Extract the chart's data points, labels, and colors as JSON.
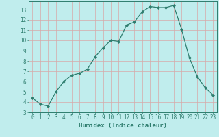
{
  "x": [
    0,
    1,
    2,
    3,
    4,
    5,
    6,
    7,
    8,
    9,
    10,
    11,
    12,
    13,
    14,
    15,
    16,
    17,
    18,
    19,
    20,
    21,
    22,
    23
  ],
  "y": [
    4.4,
    3.8,
    3.6,
    5.0,
    6.0,
    6.6,
    6.8,
    7.2,
    8.4,
    9.3,
    10.0,
    9.9,
    11.5,
    11.8,
    12.8,
    13.3,
    13.2,
    13.2,
    13.4,
    11.1,
    8.3,
    6.5,
    5.4,
    4.7
  ],
  "line_color": "#2e7d6e",
  "marker": "D",
  "markersize": 2.0,
  "linewidth": 0.9,
  "bg_color": "#c0eded",
  "grid_color": "#d8a8a8",
  "xlabel": "Humidex (Indice chaleur)",
  "xlim": [
    -0.5,
    23.5
  ],
  "ylim": [
    3,
    13.8
  ],
  "yticks": [
    3,
    4,
    5,
    6,
    7,
    8,
    9,
    10,
    11,
    12,
    13
  ],
  "xticks": [
    0,
    1,
    2,
    3,
    4,
    5,
    6,
    7,
    8,
    9,
    10,
    11,
    12,
    13,
    14,
    15,
    16,
    17,
    18,
    19,
    20,
    21,
    22,
    23
  ],
  "tick_color": "#2e7d6e",
  "label_fontsize": 5.5,
  "xlabel_fontsize": 6.5
}
